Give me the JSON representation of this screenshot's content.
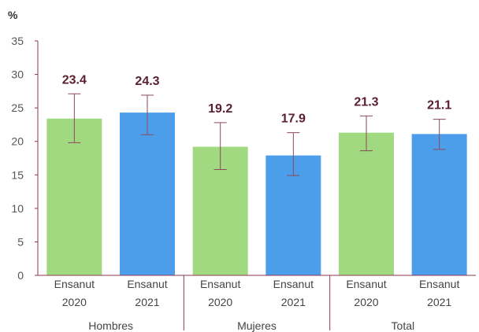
{
  "chart_data": {
    "type": "bar",
    "ylabel": "%",
    "ylim": [
      0,
      35
    ],
    "yticks": [
      "0",
      "5",
      "10",
      "15",
      "20",
      "25",
      "30",
      "35"
    ],
    "grid": false,
    "groups": [
      "Hombres",
      "Mujeres",
      "Total"
    ],
    "categories": [
      {
        "group": "Hombres",
        "line1": "Ensanut",
        "line2": "2020"
      },
      {
        "group": "Hombres",
        "line1": "Ensanut",
        "line2": "2021"
      },
      {
        "group": "Mujeres",
        "line1": "Ensanut",
        "line2": "2020"
      },
      {
        "group": "Mujeres",
        "line1": "Ensanut",
        "line2": "2021"
      },
      {
        "group": "Total",
        "line1": "Ensanut",
        "line2": "2020"
      },
      {
        "group": "Total",
        "line1": "Ensanut",
        "line2": "2021"
      }
    ],
    "values": [
      23.4,
      24.3,
      19.2,
      17.9,
      21.3,
      21.1
    ],
    "labels": [
      "23.4",
      "24.3",
      "19.2",
      "17.9",
      "21.3",
      "21.1"
    ],
    "error_low": [
      19.8,
      21.0,
      15.8,
      14.9,
      18.6,
      18.8
    ],
    "error_high": [
      27.1,
      26.9,
      22.8,
      21.3,
      23.8,
      23.3
    ],
    "colors": [
      "#a0d97f",
      "#4d9eea",
      "#a0d97f",
      "#4d9eea",
      "#a0d97f",
      "#4d9eea"
    ],
    "axis_color": "#8a3a50",
    "error_color": "#8a4a5a"
  }
}
